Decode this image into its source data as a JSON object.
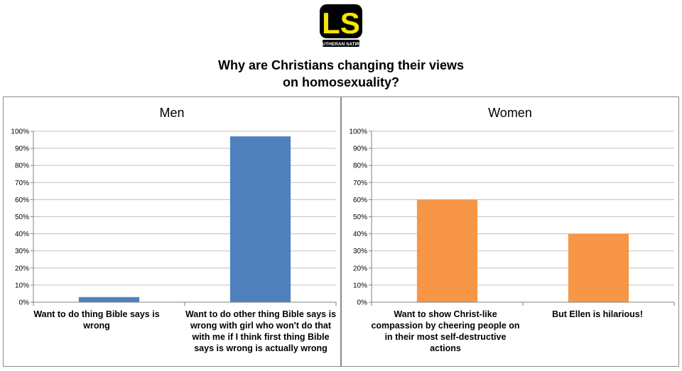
{
  "logo": {
    "letters": "LS",
    "tagline": "LUTHERAN SATIRE",
    "colors": {
      "fill": "#f7e600",
      "outline": "#000000"
    }
  },
  "title_lines": [
    "Why are Christians changing their views",
    "on homosexuality?"
  ],
  "chart_data": [
    {
      "type": "bar",
      "title": "Men",
      "categories": [
        "Want to do thing Bible says is wrong",
        "Want to do other thing Bible says is wrong with girl who won't do that with me if I think first thing Bible says is wrong is actually wrong"
      ],
      "values": [
        3,
        97
      ],
      "ylim": [
        0,
        100
      ],
      "yticks": [
        "0%",
        "10%",
        "20%",
        "30%",
        "40%",
        "50%",
        "60%",
        "70%",
        "80%",
        "90%",
        "100%"
      ],
      "grid": true,
      "bar_color": "#4f81bd"
    },
    {
      "type": "bar",
      "title": "Women",
      "categories": [
        "Want to show Christ-like compassion by cheering people on in their most self-destructive actions",
        "But Ellen is hilarious!"
      ],
      "values": [
        60,
        40
      ],
      "ylim": [
        0,
        100
      ],
      "yticks": [
        "0%",
        "10%",
        "20%",
        "30%",
        "40%",
        "50%",
        "60%",
        "70%",
        "80%",
        "90%",
        "100%"
      ],
      "grid": true,
      "bar_color": "#f79646"
    }
  ]
}
